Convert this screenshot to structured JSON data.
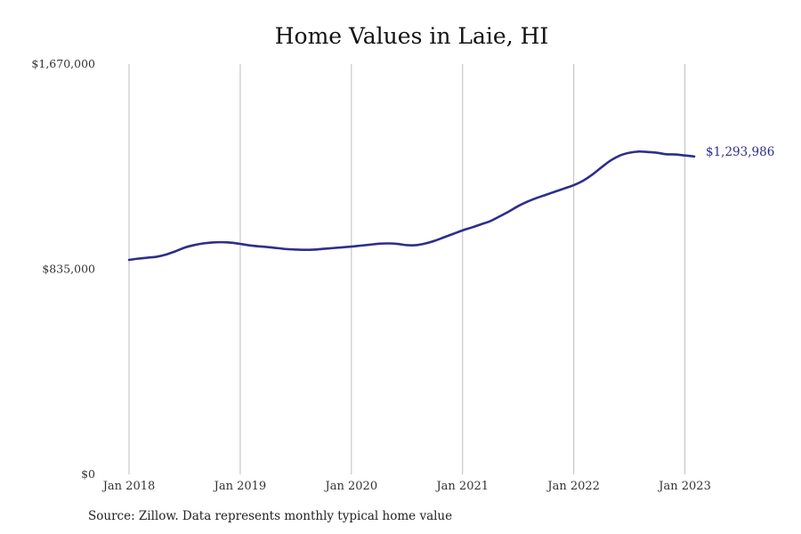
{
  "chart_data": {
    "type": "line",
    "title": "Home Values in Laie, HI",
    "xlabel": "",
    "ylabel": "",
    "source": "Source: Zillow. Data represents monthly typical home value",
    "ylim": [
      0,
      1670000
    ],
    "y_ticks": [
      {
        "value": 0,
        "label": "$0"
      },
      {
        "value": 835000,
        "label": "$835,000"
      },
      {
        "value": 1670000,
        "label": "$1,670,000"
      }
    ],
    "x_range": [
      "2018-01",
      "2023-02"
    ],
    "x_ticks": [
      {
        "date": "2018-01",
        "label": "Jan 2018"
      },
      {
        "date": "2019-01",
        "label": "Jan 2019"
      },
      {
        "date": "2020-01",
        "label": "Jan 2020"
      },
      {
        "date": "2021-01",
        "label": "Jan 2021"
      },
      {
        "date": "2022-01",
        "label": "Jan 2022"
      },
      {
        "date": "2023-01",
        "label": "Jan 2023"
      }
    ],
    "grid": {
      "vertical": true,
      "horizontal": false
    },
    "end_label": "$1,293,986",
    "line_color": "#2e2e8a",
    "series": [
      {
        "x": [
          "2018-01",
          "2018-02",
          "2018-03",
          "2018-04",
          "2018-05",
          "2018-06",
          "2018-07",
          "2018-08",
          "2018-09",
          "2018-10",
          "2018-11",
          "2018-12",
          "2019-01",
          "2019-02",
          "2019-03",
          "2019-04",
          "2019-05",
          "2019-06",
          "2019-07",
          "2019-08",
          "2019-09",
          "2019-10",
          "2019-11",
          "2019-12",
          "2020-01",
          "2020-02",
          "2020-03",
          "2020-04",
          "2020-05",
          "2020-06",
          "2020-07",
          "2020-08",
          "2020-09",
          "2020-10",
          "2020-11",
          "2020-12",
          "2021-01",
          "2021-02",
          "2021-03",
          "2021-04",
          "2021-05",
          "2021-06",
          "2021-07",
          "2021-08",
          "2021-09",
          "2021-10",
          "2021-11",
          "2021-12",
          "2022-01",
          "2022-02",
          "2022-03",
          "2022-04",
          "2022-05",
          "2022-06",
          "2022-07",
          "2022-08",
          "2022-09",
          "2022-10",
          "2022-11",
          "2022-12",
          "2023-01",
          "2023-02"
        ],
        "values": [
          873000,
          878000,
          882000,
          886000,
          895000,
          908000,
          923000,
          933000,
          940000,
          944000,
          945000,
          943000,
          938000,
          932000,
          928000,
          925000,
          921000,
          917000,
          915000,
          914000,
          915000,
          918000,
          921000,
          924000,
          927000,
          931000,
          935000,
          939000,
          940000,
          938000,
          933000,
          933000,
          940000,
          951000,
          965000,
          979000,
          993000,
          1005000,
          1018000,
          1031000,
          1050000,
          1070000,
          1092000,
          1110000,
          1125000,
          1138000,
          1151000,
          1164000,
          1177000,
          1195000,
          1220000,
          1250000,
          1278000,
          1298000,
          1309000,
          1314000,
          1312000,
          1309000,
          1303000,
          1302000,
          1298000,
          1293986
        ]
      }
    ]
  }
}
